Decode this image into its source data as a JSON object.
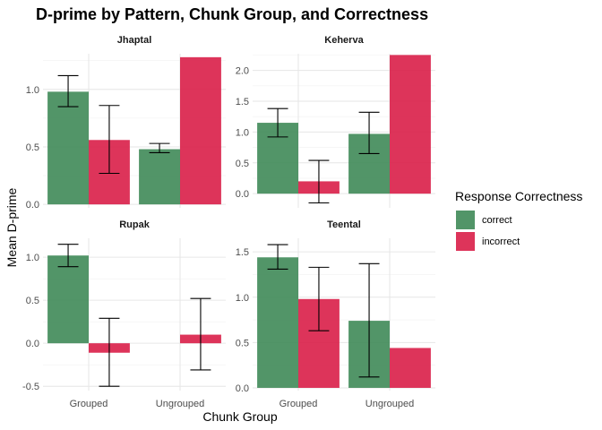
{
  "chart_data": {
    "type": "bar",
    "title": "D-prime by Pattern, Chunk Group, and Correctness",
    "xlabel": "Chunk Group",
    "ylabel": "Mean D-prime",
    "categories": [
      "Grouped",
      "Ungrouped"
    ],
    "grid": true,
    "legend": {
      "title": "Response Correctness",
      "placement": "right",
      "entries": [
        {
          "name": "correct",
          "color": "#3f8a58"
        },
        {
          "name": "incorrect",
          "color": "#d91e48"
        }
      ]
    },
    "panels": [
      {
        "label": "Jhaptal",
        "ylim": [
          -0.03,
          1.31
        ],
        "yticks": [
          0.0,
          0.5,
          1.0
        ],
        "ytick_labels": [
          "0.0",
          "0.5",
          "1.0"
        ],
        "series": [
          {
            "name": "correct",
            "values": [
              0.98,
              0.48
            ],
            "err_low": [
              0.85,
              0.45
            ],
            "err_high": [
              1.12,
              0.53
            ]
          },
          {
            "name": "incorrect",
            "values": [
              0.56,
              1.28
            ],
            "err_low": [
              0.27,
              null
            ],
            "err_high": [
              0.86,
              null
            ]
          }
        ]
      },
      {
        "label": "Keherva",
        "ylim": [
          -0.23,
          2.27
        ],
        "yticks": [
          0.0,
          0.5,
          1.0,
          1.5,
          2.0
        ],
        "ytick_labels": [
          "0.0",
          "0.5",
          "1.0",
          "1.5",
          "2.0"
        ],
        "series": [
          {
            "name": "correct",
            "values": [
              1.15,
              0.97
            ],
            "err_low": [
              0.92,
              0.65
            ],
            "err_high": [
              1.38,
              1.32
            ]
          },
          {
            "name": "incorrect",
            "values": [
              0.2,
              2.25
            ],
            "err_low": [
              -0.15,
              null
            ],
            "err_high": [
              0.54,
              null
            ]
          }
        ]
      },
      {
        "label": "Rupak",
        "ylim": [
          -0.55,
          1.22
        ],
        "yticks": [
          -0.5,
          0.0,
          0.5,
          1.0
        ],
        "ytick_labels": [
          "-0.5",
          "0.0",
          "0.5",
          "1.0"
        ],
        "series": [
          {
            "name": "correct",
            "values": [
              1.02,
              null
            ],
            "err_low": [
              0.89,
              null
            ],
            "err_high": [
              1.15,
              null
            ]
          },
          {
            "name": "incorrect",
            "values": [
              -0.11,
              0.1
            ],
            "err_low": [
              -0.5,
              -0.31
            ],
            "err_high": [
              0.29,
              0.52
            ]
          }
        ]
      },
      {
        "label": "Teental",
        "ylim": [
          -0.03,
          1.65
        ],
        "yticks": [
          0.0,
          0.5,
          1.0,
          1.5
        ],
        "ytick_labels": [
          "0.0",
          "0.5",
          "1.0",
          "1.5"
        ],
        "series": [
          {
            "name": "correct",
            "values": [
              1.44,
              0.74
            ],
            "err_low": [
              1.31,
              0.12
            ],
            "err_high": [
              1.58,
              1.37
            ]
          },
          {
            "name": "incorrect",
            "values": [
              0.98,
              0.44
            ],
            "err_low": [
              0.63,
              null
            ],
            "err_high": [
              1.33,
              null
            ]
          }
        ]
      }
    ]
  }
}
